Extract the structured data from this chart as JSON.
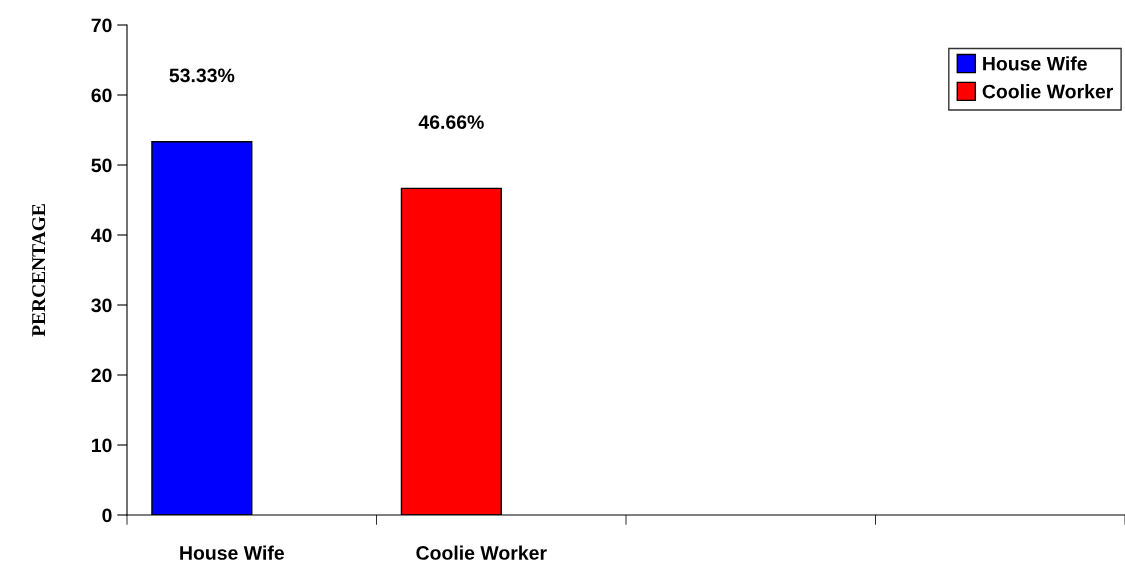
{
  "chart_data": {
    "type": "bar",
    "ylabel": "PERCENTAGE",
    "categories": [
      "House Wife",
      "Coolie Worker",
      null,
      null
    ],
    "series": [
      {
        "name": "House Wife",
        "color": "#0000ff",
        "values": [
          53.33,
          null,
          null,
          null
        ],
        "value_labels": [
          "53.33%",
          null,
          null,
          null
        ]
      },
      {
        "name": "Coolie Worker",
        "color": "#ff0000",
        "values": [
          null,
          46.66,
          null,
          null
        ],
        "value_labels": [
          null,
          "46.66%",
          null,
          null
        ]
      }
    ],
    "ylim": [
      0,
      70
    ],
    "yticks": [
      0,
      10,
      20,
      30,
      40,
      50,
      60,
      70
    ],
    "grid": false,
    "legend": "top right"
  }
}
